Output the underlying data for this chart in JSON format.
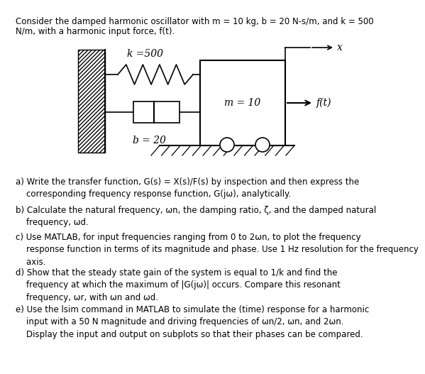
{
  "background_color": "#ffffff",
  "header_line1": "Consider the damped harmonic oscillator with m = 10 kg, b = 20 N-s/m, and k = 500",
  "header_line2": "N/m, with a harmonic input force, f(t).",
  "questions": [
    {
      "label": "a)",
      "text": " Write the transfer function, G(s) = X(s)/F(s) by inspection and then express the\n    corresponding frequency response function, G(jω), analytically."
    },
    {
      "label": "b)",
      "text": " Calculate the natural frequency, ωn, the damping ratio, ζ, and the damped natural\n    frequency, ωd."
    },
    {
      "label": "c)",
      "text": " Use MATLAB, for input frequencies ranging from 0 to 2ωn, to plot the frequency\n    response function in terms of its magnitude and phase. Use 1 Hz resolution for the frequency\n    axis."
    },
    {
      "label": "d)",
      "text": " Show that the steady state gain of the system is equal to 1/k and find the\n    frequency at which the maximum of |G(jω)| occurs. Compare this resonant\n    frequency, ωr, with ωn and ωd."
    },
    {
      "label": "e)",
      "text": " Use the lsim command in MATLAB to simulate the (time) response for a harmonic\n    input with a 50 N magnitude and driving frequencies of ωn/2, ωn, and 2ωn.\n    Display the input and output on subplots so that their phases can be compared."
    }
  ],
  "spring_label": "k =500",
  "damper_label": "b = 20",
  "mass_label": "m = 10",
  "x_label": "x",
  "ft_label": "f(t)",
  "lsim_italic": "lsim"
}
